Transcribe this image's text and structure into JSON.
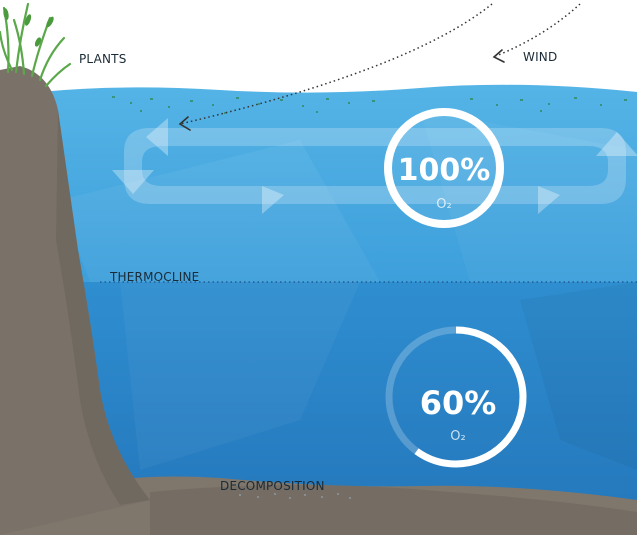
{
  "labels": {
    "plants": "PLANTS",
    "wind": "WIND",
    "thermocline": "THERMOCLINE",
    "decomposition": "DECOMPOSITION"
  },
  "gauges": {
    "upper": {
      "value": 100,
      "text": "100%",
      "unit": "O₂"
    },
    "lower": {
      "value": 60,
      "text": "60%",
      "unit": "O₂"
    }
  },
  "colors": {
    "sky": "#ffffff",
    "upper_water": "#3ea3de",
    "lower_water": "#2b86c8",
    "ground": "#7a7268",
    "plant_green": "#5aa84a"
  }
}
